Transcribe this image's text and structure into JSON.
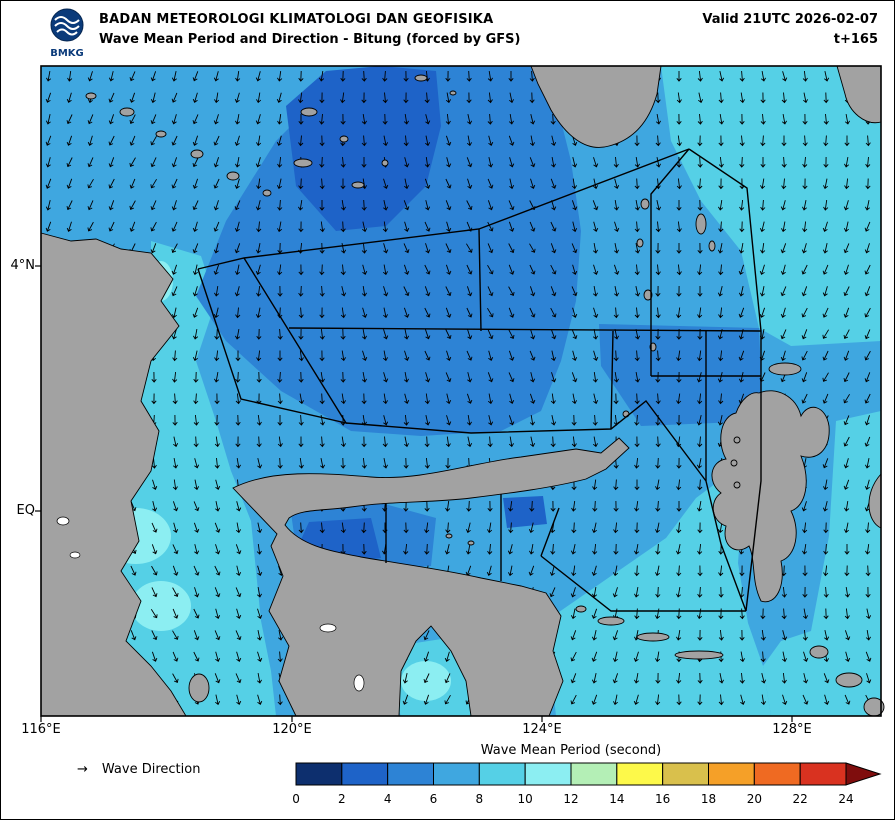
{
  "header": {
    "logo_label": "BMKG",
    "agency": "BADAN METEOROLOGI KLIMATOLOGI DAN GEOFISIKA",
    "product": "Wave Mean Period and Direction - Bitung (forced by GFS)",
    "valid": "Valid 21UTC 2026-02-07",
    "timestep": "t+165"
  },
  "map": {
    "x_tick_labels": [
      "116°E",
      "120°E",
      "124°E",
      "128°E"
    ],
    "y_tick_labels": [
      "4°N",
      "EQ"
    ]
  },
  "legend": {
    "direction_arrow": "→",
    "direction_label": "Wave Direction",
    "title": "Wave Mean Period (second)",
    "ticks": [
      "0",
      "2",
      "4",
      "6",
      "8",
      "10",
      "12",
      "14",
      "16",
      "18",
      "20",
      "22",
      "24"
    ],
    "colors": [
      "#0d2f6e",
      "#1e63c8",
      "#2d83d5",
      "#3fa7e0",
      "#55d0e6",
      "#8ceef2",
      "#b4efb6",
      "#fdf94a",
      "#d9c04c",
      "#f5a028",
      "#ef6a22",
      "#d93220"
    ],
    "overflow_color": "#7f0d0d"
  },
  "palette": {
    "land": "#a2a2a2",
    "coast": "#000000",
    "sea_2_4": "#1e63c8",
    "sea_4_6": "#2d83d5",
    "sea_6_8": "#3fa7e0",
    "sea_8_10": "#55d0e6",
    "sea_10_12": "#8ceef2",
    "zone_line": "#000000",
    "arrow": "#000000",
    "lake": "#ffffff"
  }
}
